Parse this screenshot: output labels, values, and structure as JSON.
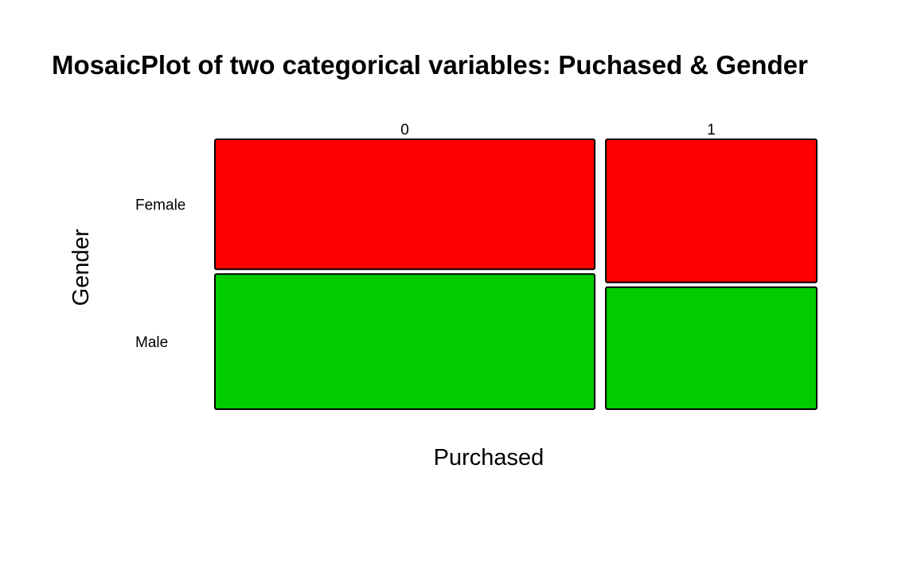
{
  "chart_data": {
    "type": "mosaic",
    "title": "MosaicPlot of two categorical variables: Puchased & Gender",
    "xlabel": "Purchased",
    "ylabel": "Gender",
    "x_categories": [
      "0",
      "1"
    ],
    "y_categories": [
      "Female",
      "Male"
    ],
    "x_proportions": [
      0.643,
      0.357
    ],
    "y_proportions_within_x": [
      {
        "x": "0",
        "Female": 0.49,
        "Male": 0.51
      },
      {
        "x": "1",
        "Female": 0.54,
        "Male": 0.46
      }
    ],
    "colors": {
      "Female": "#ff0000",
      "Male": "#00cc00"
    },
    "tile_border_color": "#000000",
    "background": "#ffffff",
    "grid": false,
    "legend": "none"
  }
}
